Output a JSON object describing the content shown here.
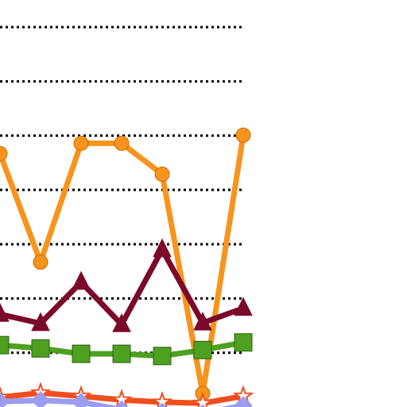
{
  "chart_data": {
    "type": "line",
    "categories": [
      null,
      null,
      null,
      null,
      null,
      null,
      null
    ],
    "ylim": [
      -1,
      6.5
    ],
    "yticks": [
      0,
      1,
      2,
      3,
      4,
      5,
      6
    ],
    "grid": true,
    "series": [
      {
        "color": "#f7941d",
        "marker": "circle",
        "values": [
          3.67,
          1.67,
          3.86,
          3.86,
          3.29,
          -0.75,
          4.01
        ]
      },
      {
        "color": "#7b0a2a",
        "marker": "triangle",
        "values": [
          0.71,
          0.54,
          1.3,
          0.52,
          1.9,
          0.55,
          0.82
        ]
      },
      {
        "color": "#4ea021",
        "marker": "square",
        "values": [
          0.14,
          0.08,
          -0.02,
          -0.02,
          -0.06,
          0.05,
          0.19
        ]
      },
      {
        "color": "#f04e1e",
        "marker": "star",
        "values": [
          -0.82,
          -0.74,
          -0.8,
          -0.87,
          -0.91,
          -0.93,
          -0.8
        ]
      },
      {
        "color": "#9c9cf0",
        "marker": "diamond",
        "values": [
          -0.9,
          -0.88,
          -0.91,
          -1.05,
          -1.09,
          -1.12,
          -0.97
        ]
      }
    ]
  }
}
